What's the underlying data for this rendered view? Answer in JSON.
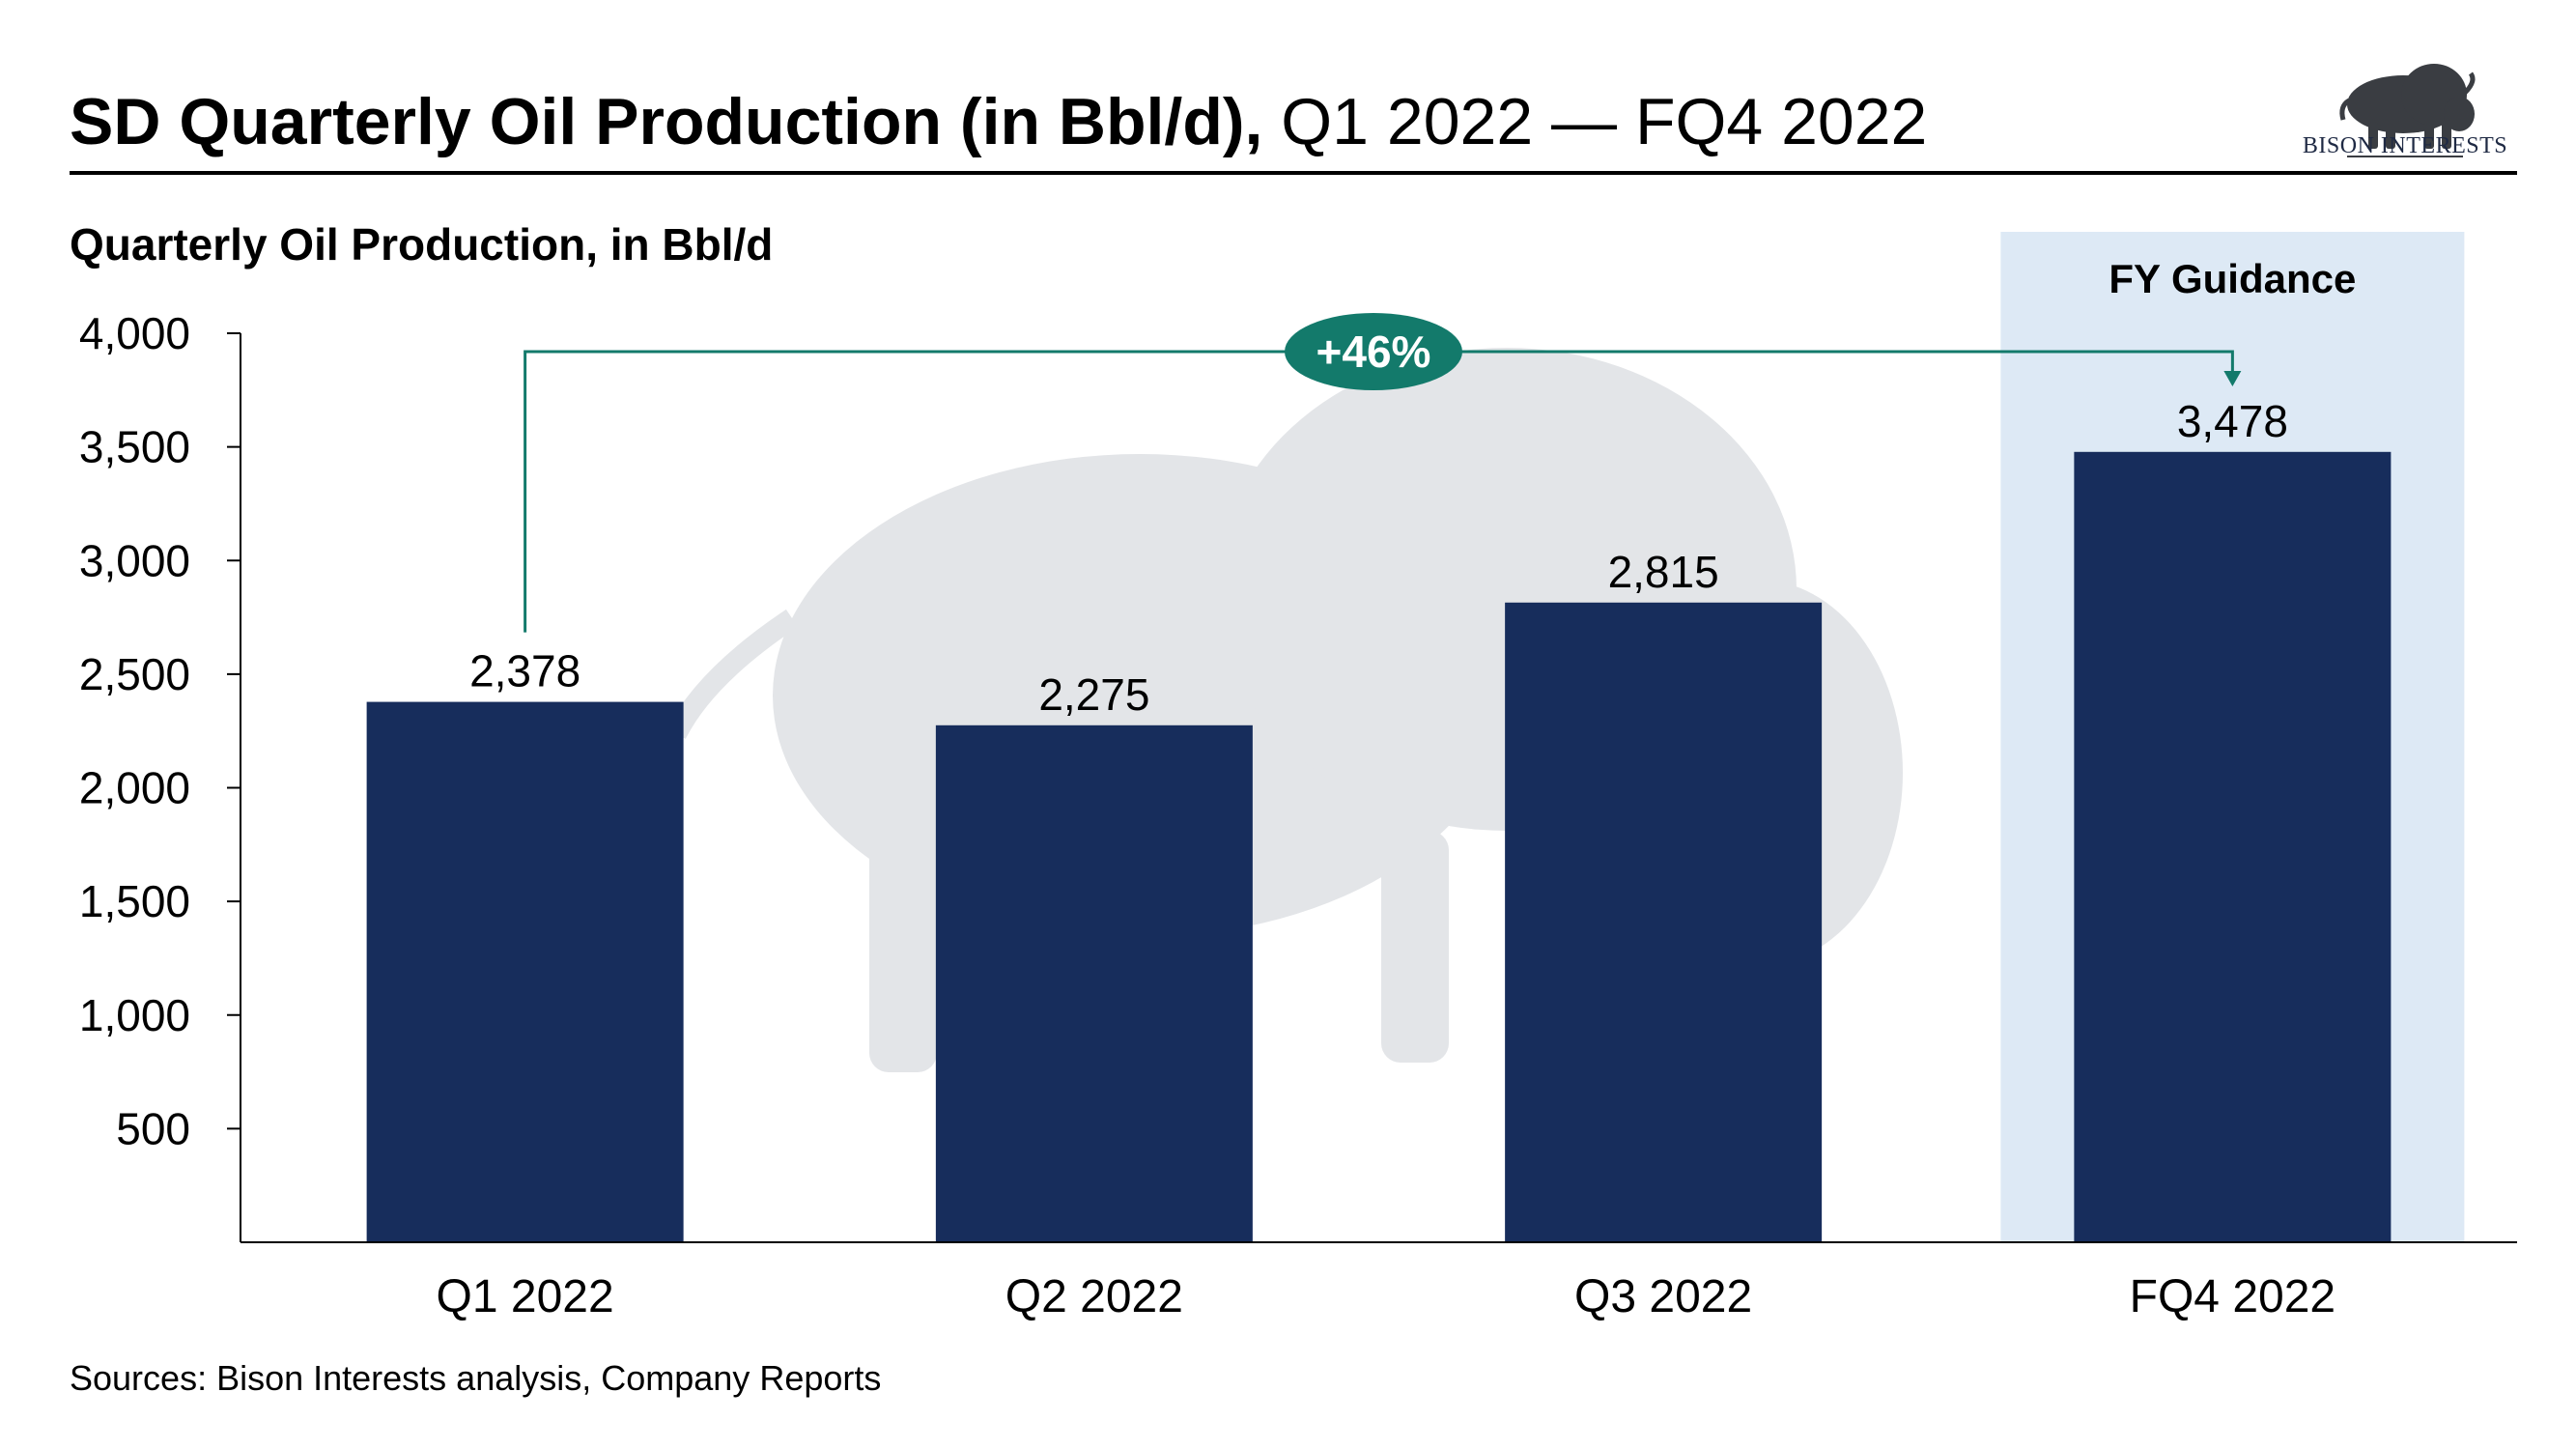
{
  "header": {
    "title_bold": "SD Quarterly Oil Production (in Bbl/d),",
    "title_normal": " Q1 2022 — FQ4 2022"
  },
  "logo": {
    "text": "BISON INTERESTS",
    "icon": "bison-icon"
  },
  "footer": {
    "sources": "Sources: Bison Interests analysis, Company Reports"
  },
  "colors": {
    "bar": "#172d5c",
    "guidance_band": "#dde9f5",
    "growth_accent": "#137a6b",
    "watermark": "#e3e5e8"
  },
  "chart_data": {
    "type": "bar",
    "title": "Quarterly Oil Production, in Bbl/d",
    "categories": [
      "Q1 2022",
      "Q2 2022",
      "Q3 2022",
      "FQ4 2022"
    ],
    "values": [
      2378,
      2275,
      2815,
      3478
    ],
    "value_labels": [
      "2,378",
      "2,275",
      "2,815",
      "3,478"
    ],
    "ylim": [
      0,
      4000
    ],
    "yticks": [
      500,
      1000,
      1500,
      2000,
      2500,
      3000,
      3500,
      4000
    ],
    "ytick_labels": [
      "500",
      "1,000",
      "1,500",
      "2,000",
      "2,500",
      "3,000",
      "3,500",
      "4,000"
    ],
    "grid": false,
    "highlight": {
      "label": "FY Guidance",
      "category": "FQ4 2022"
    },
    "annotation": {
      "label": "+46%",
      "from": "Q1 2022",
      "to": "FQ4 2022"
    }
  }
}
